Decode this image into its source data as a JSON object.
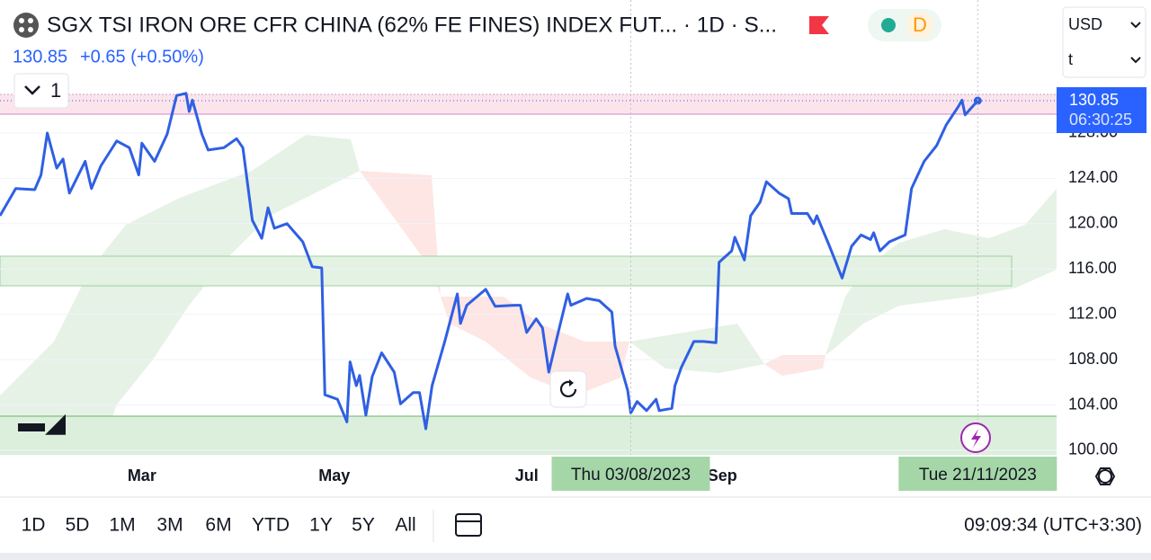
{
  "header": {
    "title": "SGX TSI IRON ORE CFR CHINA (62% FE FINES) INDEX FUT... · 1D · S...",
    "badge": "D",
    "price": "130.85",
    "change": "+0.65 (+0.50%)",
    "collapse": "1",
    "currency": "USD",
    "unit": "t"
  },
  "chart_data": {
    "type": "line",
    "color": "#2f5fe3",
    "x": [
      14,
      19,
      25,
      27,
      29,
      32,
      34,
      36,
      41,
      43,
      46,
      51,
      55,
      58,
      59,
      63,
      67,
      70,
      73,
      74,
      75,
      78,
      80,
      85,
      89,
      91,
      94,
      97,
      99,
      101,
      105,
      110,
      113,
      116,
      117,
      121,
      124,
      125,
      127,
      128,
      130,
      132,
      135,
      139,
      141,
      145,
      147,
      149,
      151,
      155,
      159,
      160,
      162,
      168,
      171,
      177,
      179,
      181,
      184,
      186,
      188,
      191,
      194,
      195,
      200,
      204,
      208,
      209,
      213,
      214,
      216,
      219,
      222,
      223,
      227,
      228,
      230,
      234,
      237,
      241,
      242,
      246,
      247,
      250,
      252,
      255,
      257,
      261,
      264,
      265,
      270,
      272,
      273,
      277,
      281,
      284,
      287,
      290,
      291,
      293,
      296,
      301,
      303,
      307,
      311,
      314,
      318,
      319,
      320,
      324
    ],
    "values": [
      120.7,
      123.1,
      123.0,
      124.3,
      128.0,
      124.9,
      125.7,
      122.7,
      125.5,
      123.1,
      125.1,
      127.3,
      126.7,
      124.3,
      127.1,
      125.5,
      127.9,
      131.3,
      131.5,
      129.9,
      130.9,
      127.9,
      126.5,
      126.7,
      127.5,
      126.7,
      120.3,
      118.7,
      121.4,
      119.6,
      120.0,
      118.4,
      116.2,
      116.1,
      104.9,
      104.5,
      102.5,
      107.8,
      105.7,
      106.6,
      103.1,
      106.5,
      108.6,
      106.9,
      104.1,
      105.1,
      105.1,
      101.9,
      105.7,
      109.6,
      113.8,
      111.2,
      112.8,
      114.2,
      112.7,
      112.8,
      112.8,
      110.4,
      111.6,
      110.8,
      106.9,
      110.4,
      113.8,
      112.8,
      113.4,
      113.2,
      112.2,
      109.2,
      105.3,
      103.3,
      104.3,
      103.5,
      104.5,
      103.5,
      103.7,
      105.7,
      107.3,
      109.6,
      109.6,
      109.5,
      116.6,
      117.6,
      118.8,
      116.8,
      120.7,
      121.9,
      123.7,
      122.7,
      122.2,
      120.9,
      120.9,
      120.0,
      120.7,
      118.0,
      115.2,
      118.0,
      119.0,
      118.6,
      119.2,
      117.6,
      118.4,
      119.0,
      123.1,
      125.5,
      126.9,
      128.7,
      130.4,
      130.9,
      129.6,
      130.85
    ],
    "xlim": [
      14,
      349
    ],
    "ylim": [
      99.6,
      132.2
    ],
    "xticks": [
      {
        "value": 59,
        "label": "Mar"
      },
      {
        "value": 120,
        "label": "May"
      },
      {
        "value": 181,
        "label": "Jul"
      },
      {
        "value": 243,
        "label": "Sep"
      }
    ],
    "yticks": [
      {
        "value": 100,
        "label": "100.00"
      },
      {
        "value": 104,
        "label": "104.00"
      },
      {
        "value": 108,
        "label": "108.00"
      },
      {
        "value": 112,
        "label": "112.00"
      },
      {
        "value": 116,
        "label": "116.00"
      },
      {
        "value": 120,
        "label": "120.00"
      },
      {
        "value": 124,
        "label": "124.00"
      },
      {
        "value": 128,
        "label": "128.00"
      }
    ],
    "grid": true,
    "crosshair_labels": [
      {
        "value": 214,
        "label": "Thu 03/08/2023"
      },
      {
        "value": 324,
        "label": "Tue 21/11/2023"
      }
    ],
    "last_price": {
      "value": 130.85,
      "label": "130.85"
    },
    "countdown": "06:30:25"
  },
  "toolbar": {
    "ranges": [
      "1D",
      "5D",
      "1M",
      "3M",
      "6M",
      "YTD",
      "1Y",
      "5Y",
      "All"
    ],
    "clock": "09:09:34 (UTC+3:30)"
  }
}
